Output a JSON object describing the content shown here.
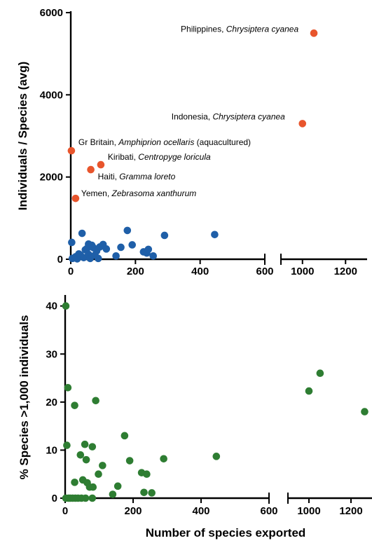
{
  "colors": {
    "blue": "#1f5fa8",
    "orange": "#e8552c",
    "green": "#2e7d32",
    "axis": "#000000"
  },
  "chart_data": [
    {
      "type": "scatter",
      "panel": "top",
      "title": "",
      "xlabel": "",
      "ylabel": "Individuals / Species (avg)",
      "broken_x_axis": true,
      "segments": [
        {
          "xlim": [
            0,
            600
          ]
        },
        {
          "xlim": [
            900,
            1300
          ]
        }
      ],
      "ylim": [
        0,
        6000
      ],
      "xticks": [
        {
          "value": 0,
          "label": "0"
        },
        {
          "value": 200,
          "label": "200"
        },
        {
          "value": 400,
          "label": "400"
        },
        {
          "value": 600,
          "label": "600"
        },
        {
          "value": 1000,
          "label": "1000"
        },
        {
          "value": 1200,
          "label": "1200"
        }
      ],
      "yticks": [
        {
          "value": 0,
          "label": "0"
        },
        {
          "value": 2000,
          "label": "2000"
        },
        {
          "value": 4000,
          "label": "4000"
        },
        {
          "value": 6000,
          "label": "6000"
        }
      ],
      "series": [
        {
          "color": "#1f5fa8",
          "points": [
            {
              "x": 3,
              "y": 410
            },
            {
              "x": 5,
              "y": 20
            },
            {
              "x": 10,
              "y": 30
            },
            {
              "x": 15,
              "y": 60
            },
            {
              "x": 20,
              "y": 10
            },
            {
              "x": 25,
              "y": 130
            },
            {
              "x": 30,
              "y": 100
            },
            {
              "x": 35,
              "y": 630
            },
            {
              "x": 40,
              "y": 40
            },
            {
              "x": 45,
              "y": 230
            },
            {
              "x": 50,
              "y": 260
            },
            {
              "x": 55,
              "y": 120
            },
            {
              "x": 55,
              "y": 370
            },
            {
              "x": 60,
              "y": 20
            },
            {
              "x": 65,
              "y": 340
            },
            {
              "x": 70,
              "y": 280
            },
            {
              "x": 75,
              "y": 100
            },
            {
              "x": 80,
              "y": 200
            },
            {
              "x": 85,
              "y": 20
            },
            {
              "x": 90,
              "y": 300
            },
            {
              "x": 100,
              "y": 360
            },
            {
              "x": 110,
              "y": 250
            },
            {
              "x": 140,
              "y": 80
            },
            {
              "x": 155,
              "y": 290
            },
            {
              "x": 175,
              "y": 700
            },
            {
              "x": 190,
              "y": 350
            },
            {
              "x": 225,
              "y": 180
            },
            {
              "x": 235,
              "y": 150
            },
            {
              "x": 240,
              "y": 240
            },
            {
              "x": 255,
              "y": 80
            },
            {
              "x": 290,
              "y": 580
            },
            {
              "x": 445,
              "y": 600
            }
          ]
        },
        {
          "color": "#e8552c",
          "points": [
            {
              "x": 1053,
              "y": 5500,
              "label": "Philippines, ",
              "label_italic": "Chrysiptera cyanea",
              "label_rest": ""
            },
            {
              "x": 1000,
              "y": 3300,
              "label": "Indonesia, ",
              "label_italic": "Chrysiptera cyanea",
              "label_rest": ""
            },
            {
              "x": 2,
              "y": 2640,
              "label": "Gr Britain, ",
              "label_italic": "Amphiprion ocellaris",
              "label_rest": " (aquacultured)"
            },
            {
              "x": 93,
              "y": 2300,
              "label": "Kiribati, ",
              "label_italic": "Centropyge loricula",
              "label_rest": ""
            },
            {
              "x": 62,
              "y": 2180,
              "label": "Haiti, ",
              "label_italic": "Gramma loreto",
              "label_rest": ""
            },
            {
              "x": 15,
              "y": 1480,
              "label": "Yemen, ",
              "label_italic": "Zebrasoma xanthurum",
              "label_rest": ""
            }
          ]
        }
      ]
    },
    {
      "type": "scatter",
      "panel": "bottom",
      "title": "",
      "xlabel": "Number of species exported",
      "ylabel": "% Species >1,000 individuals",
      "broken_x_axis": true,
      "segments": [
        {
          "xlim": [
            0,
            600
          ]
        },
        {
          "xlim": [
            900,
            1300
          ]
        }
      ],
      "ylim": [
        0,
        42
      ],
      "xticks": [
        {
          "value": 0,
          "label": "0"
        },
        {
          "value": 200,
          "label": "200"
        },
        {
          "value": 400,
          "label": "400"
        },
        {
          "value": 600,
          "label": "600"
        },
        {
          "value": 1000,
          "label": "1000"
        },
        {
          "value": 1200,
          "label": "1200"
        }
      ],
      "yticks": [
        {
          "value": 0,
          "label": "0"
        },
        {
          "value": 10,
          "label": "10"
        },
        {
          "value": 20,
          "label": "20"
        },
        {
          "value": 30,
          "label": "30"
        },
        {
          "value": 40,
          "label": "40"
        }
      ],
      "series": [
        {
          "color": "#2e7d32",
          "points": [
            {
              "x": 2,
              "y": 40
            },
            {
              "x": 8,
              "y": 23
            },
            {
              "x": 5,
              "y": 11
            },
            {
              "x": 28,
              "y": 19.3
            },
            {
              "x": 90,
              "y": 20.3
            },
            {
              "x": 2,
              "y": 0
            },
            {
              "x": 10,
              "y": 0
            },
            {
              "x": 15,
              "y": 0
            },
            {
              "x": 22,
              "y": 0
            },
            {
              "x": 30,
              "y": 0
            },
            {
              "x": 38,
              "y": 0
            },
            {
              "x": 48,
              "y": 0
            },
            {
              "x": 60,
              "y": 0
            },
            {
              "x": 80,
              "y": 0
            },
            {
              "x": 28,
              "y": 3.3
            },
            {
              "x": 45,
              "y": 9
            },
            {
              "x": 52,
              "y": 3.8
            },
            {
              "x": 58,
              "y": 11.2
            },
            {
              "x": 62,
              "y": 8
            },
            {
              "x": 65,
              "y": 3.2
            },
            {
              "x": 72,
              "y": 2.3
            },
            {
              "x": 80,
              "y": 10.7
            },
            {
              "x": 82,
              "y": 2.3
            },
            {
              "x": 98,
              "y": 5
            },
            {
              "x": 110,
              "y": 6.8
            },
            {
              "x": 140,
              "y": 0.8
            },
            {
              "x": 155,
              "y": 2.5
            },
            {
              "x": 175,
              "y": 13
            },
            {
              "x": 190,
              "y": 7.8
            },
            {
              "x": 225,
              "y": 5.3
            },
            {
              "x": 232,
              "y": 1.2
            },
            {
              "x": 240,
              "y": 5
            },
            {
              "x": 255,
              "y": 1.1
            },
            {
              "x": 290,
              "y": 8.2
            },
            {
              "x": 445,
              "y": 8.7
            },
            {
              "x": 1000,
              "y": 22.3
            },
            {
              "x": 1053,
              "y": 26
            },
            {
              "x": 1265,
              "y": 18
            }
          ]
        }
      ]
    }
  ]
}
